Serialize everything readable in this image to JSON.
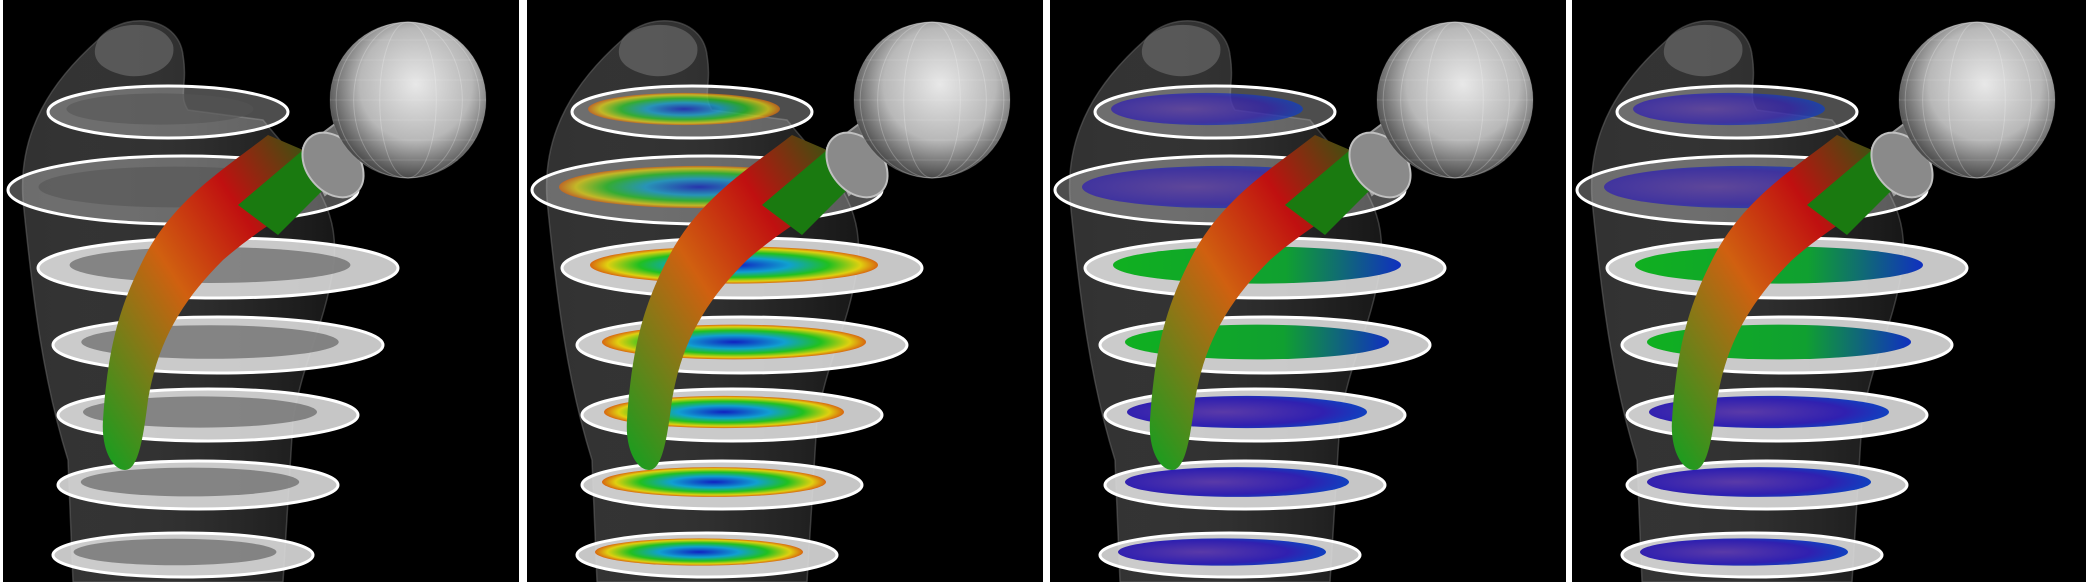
{
  "figure": {
    "panels": [
      {
        "id": "p1",
        "slice_style": "gray"
      },
      {
        "id": "p2",
        "slice_style": "rainbow"
      },
      {
        "id": "p3",
        "slice_style": "purple"
      },
      {
        "id": "p4",
        "slice_style": "purple"
      }
    ],
    "colors": {
      "background": "#000000",
      "separator": "#ffffff",
      "stem_red": "#c01010",
      "stem_orange": "#d06010",
      "stem_green": "#10a020",
      "bone_gray": "#8a8a8a",
      "ball_gray": "#b8b8b8",
      "slice_blue": "#1020c0",
      "slice_purple": "#5a3aa8"
    }
  }
}
